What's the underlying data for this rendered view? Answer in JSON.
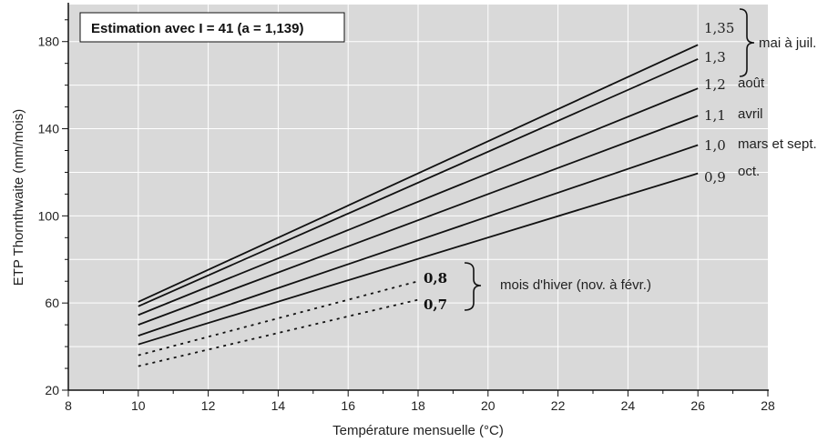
{
  "chart_data": {
    "type": "line",
    "title": "Estimation avec I = 41 (a = 1,139)",
    "xlabel": "Température mensuelle (°C)",
    "ylabel": "ETP Thornthwaite (mm/mois)",
    "xlim": [
      8,
      28
    ],
    "ylim": [
      20,
      197
    ],
    "x_ticks": [
      8,
      10,
      12,
      14,
      16,
      18,
      20,
      22,
      24,
      26,
      28
    ],
    "y_ticks": [
      20,
      60,
      100,
      140,
      180
    ],
    "grid": true,
    "background": "#d9d9d9",
    "series": [
      {
        "name": "1,35",
        "style": "solid",
        "x": [
          10,
          26
        ],
        "y": [
          60.5,
          178.5
        ]
      },
      {
        "name": "1,3",
        "style": "solid",
        "x": [
          10,
          26
        ],
        "y": [
          58.5,
          172
        ]
      },
      {
        "name": "1,2",
        "style": "solid",
        "x": [
          10,
          26
        ],
        "y": [
          54.5,
          158.5
        ]
      },
      {
        "name": "1,1",
        "style": "solid",
        "x": [
          10,
          26
        ],
        "y": [
          50,
          146
        ]
      },
      {
        "name": "1,0",
        "style": "solid",
        "x": [
          10,
          26
        ],
        "y": [
          45,
          132.5
        ]
      },
      {
        "name": "0,9",
        "style": "solid",
        "x": [
          10,
          26
        ],
        "y": [
          41,
          119.5
        ]
      },
      {
        "name": "0,8",
        "style": "dashed",
        "x": [
          10,
          18
        ],
        "y": [
          36,
          70
        ]
      },
      {
        "name": "0,7",
        "style": "dashed",
        "x": [
          10,
          18
        ],
        "y": [
          31,
          61.5
        ]
      }
    ],
    "labels": {
      "1,35": "1,35",
      "1,3": "1,3",
      "1,2": "1,2",
      "1,1": "1,1",
      "1,0": "1,0",
      "0,9": "0,9",
      "0,8": "0,8",
      "0,7": "0,7"
    },
    "annotations": {
      "mai": "mai à juil.",
      "aout": "août",
      "avril": "avril",
      "mars": "mars et sept.",
      "oct": "oct.",
      "hiver": "mois d'hiver (nov. à févr.)"
    }
  }
}
